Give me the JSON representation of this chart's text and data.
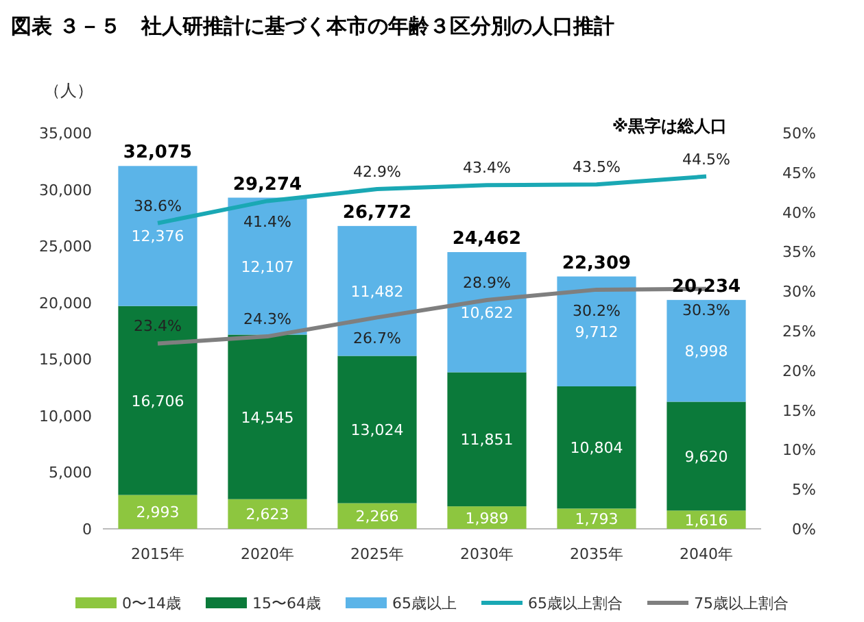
{
  "chart_data": {
    "type": "bar",
    "stacked": true,
    "title": "図表 ３－５　社人研推計に基づく本市の年齢３区分別の人口推計",
    "ylabel": "（人）",
    "annotations": [
      "※黒字は総人口"
    ],
    "categories": [
      "2015年",
      "2020年",
      "2025年",
      "2030年",
      "2035年",
      "2040年"
    ],
    "series": [
      {
        "name": "0〜14歳",
        "color": "#8dc63f",
        "values": [
          2993,
          2623,
          2266,
          1989,
          1793,
          1616
        ],
        "value_labels": [
          "2,993",
          "2,623",
          "2,266",
          "1,989",
          "1,793",
          "1,616"
        ]
      },
      {
        "name": "15〜64歳",
        "color": "#0b7a3a",
        "values": [
          16706,
          14545,
          13024,
          11851,
          10804,
          9620
        ],
        "value_labels": [
          "16,706",
          "14,545",
          "13,024",
          "11,851",
          "10,804",
          "9,620"
        ]
      },
      {
        "name": "65歳以上",
        "color": "#5bb4e8",
        "values": [
          12376,
          12107,
          11482,
          10622,
          9712,
          8998
        ],
        "value_labels": [
          "12,376",
          "12,107",
          "11,482",
          "10,622",
          "9,712",
          "8,998"
        ]
      },
      {
        "name": "65歳以上割合",
        "type": "line",
        "axis": "y2",
        "color": "#1aa8b4",
        "values": [
          38.6,
          41.4,
          42.9,
          43.4,
          43.5,
          44.5
        ],
        "value_labels": [
          "38.6%",
          "41.4%",
          "42.9%",
          "43.4%",
          "43.5%",
          "44.5%"
        ]
      },
      {
        "name": "75歳以上割合",
        "type": "line",
        "axis": "y2",
        "color": "#7f7f7f",
        "values": [
          23.4,
          24.3,
          26.7,
          28.9,
          30.2,
          30.3
        ],
        "value_labels": [
          "23.4%",
          "24.3%",
          "26.7%",
          "28.9%",
          "30.2%",
          "30.3%"
        ]
      }
    ],
    "totals": [
      "32,075",
      "29,274",
      "26,772",
      "24,462",
      "22,309",
      "20,234"
    ],
    "ylim": [
      0,
      35000
    ],
    "yticks": [
      0,
      {
        "value": 5000,
        "label": "5,000"
      },
      {
        "value": 10000,
        "label": "10,000"
      },
      {
        "value": 15000,
        "label": "15,000"
      },
      {
        "value": 20000,
        "label": "20,000"
      },
      {
        "value": 25000,
        "label": "25,000"
      },
      {
        "value": 30000,
        "label": "30,000"
      },
      {
        "value": 35000,
        "label": "35,000"
      }
    ],
    "y2lim": [
      0,
      50
    ],
    "y2ticks": [
      {
        "value": 0,
        "label": "0%"
      },
      {
        "value": 5,
        "label": "5%"
      },
      {
        "value": 10,
        "label": "10%"
      },
      {
        "value": 15,
        "label": "15%"
      },
      {
        "value": 20,
        "label": "20%"
      },
      {
        "value": 25,
        "label": "25%"
      },
      {
        "value": 30,
        "label": "30%"
      },
      {
        "value": 35,
        "label": "35%"
      },
      {
        "value": 40,
        "label": "40%"
      },
      {
        "value": 45,
        "label": "45%"
      },
      {
        "value": 50,
        "label": "50%"
      }
    ],
    "legend": "bottom"
  }
}
